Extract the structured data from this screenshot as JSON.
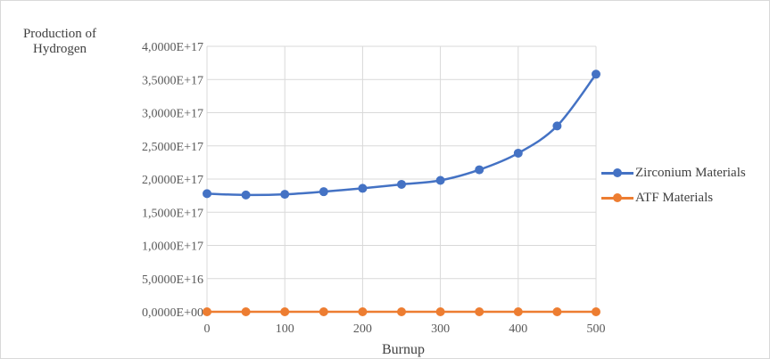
{
  "chart_data": {
    "type": "line",
    "title": "",
    "xlabel": "Burnup",
    "ylabel": "Production of Hydrogen",
    "ylabel_lines": [
      "Production of",
      "Hydrogen"
    ],
    "x": [
      0,
      50,
      100,
      150,
      200,
      250,
      300,
      350,
      400,
      450,
      500
    ],
    "x_ticks": [
      "0",
      "100",
      "200",
      "300",
      "400",
      "500"
    ],
    "y_ticks": [
      "0,0000E+00",
      "5,0000E+16",
      "1,0000E+17",
      "1,5000E+17",
      "2,0000E+17",
      "2,5000E+17",
      "3,0000E+17",
      "3,5000E+17",
      "4,0000E+17"
    ],
    "xlim": [
      0,
      500
    ],
    "ylim": [
      0,
      4e+17
    ],
    "grid": true,
    "legend_position": "right",
    "series": [
      {
        "name": "Zirconium Materials",
        "color": "#4472c4",
        "values": [
          1.78e+17,
          1.76e+17,
          1.77e+17,
          1.81e+17,
          1.86e+17,
          1.92e+17,
          1.98e+17,
          2.14e+17,
          2.39e+17,
          2.8e+17,
          3.58e+17
        ]
      },
      {
        "name": "ATF Materials",
        "color": "#ed7d31",
        "values": [
          0,
          0,
          0,
          0,
          0,
          0,
          0,
          0,
          0,
          0,
          0
        ]
      }
    ]
  }
}
